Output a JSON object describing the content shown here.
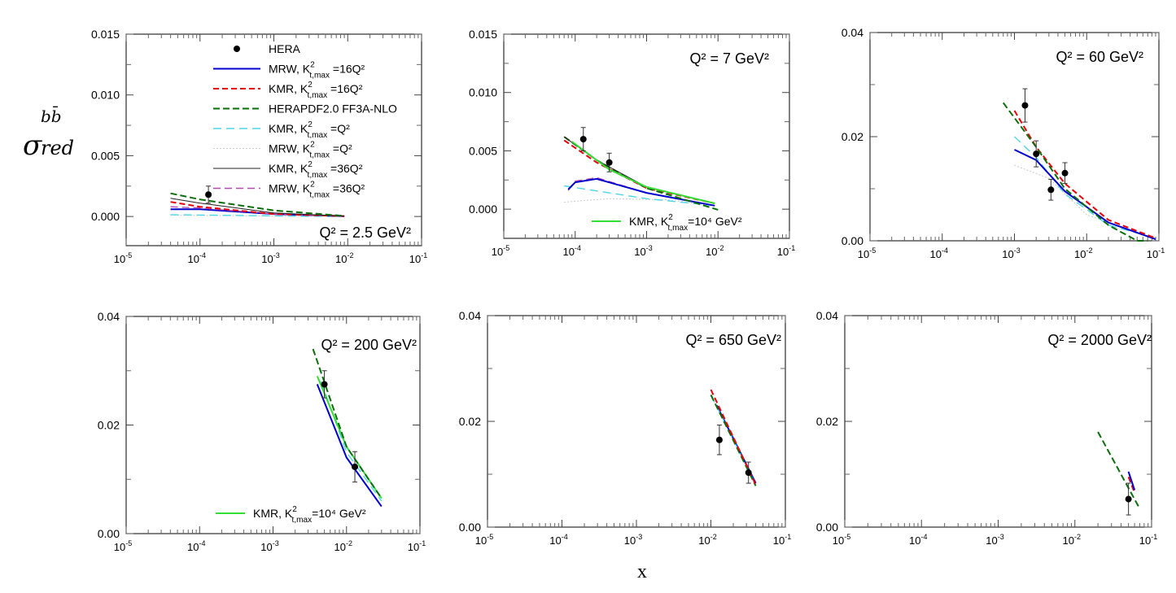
{
  "chart_data": {
    "type": "line",
    "ylabel": {
      "main": "σ",
      "sup": "bb̄",
      "sub": "red"
    },
    "xlabel": "x",
    "xscale": "log",
    "xlim": [
      1e-05,
      0.1
    ],
    "xtick_labels": [
      {
        "base": "10",
        "exp": "-5"
      },
      {
        "base": "10",
        "exp": "-4"
      },
      {
        "base": "10",
        "exp": "-3"
      },
      {
        "base": "10",
        "exp": "-2"
      },
      {
        "base": "10",
        "exp": "-1"
      }
    ],
    "series_styles": {
      "HERA": {
        "label": {
          "pre": "HERA",
          "sup": "",
          "sub": "",
          "post": ""
        },
        "color": "#000000"
      },
      "MRW16": {
        "label": {
          "pre": "MRW, K",
          "sup": "2",
          "sub": "t,max",
          "post": " =16Q²"
        },
        "color": "#0000cc"
      },
      "KMR16": {
        "label": {
          "pre": "KMR, K",
          "sup": "2",
          "sub": "t,max",
          "post": " =16Q²"
        },
        "color": "#e8000b"
      },
      "HERAPDF": {
        "label": {
          "pre": "HERAPDF2.0 FF3A-NLO",
          "sup": "",
          "sub": "",
          "post": ""
        },
        "color": "#0a6e0a"
      },
      "KMRQ2": {
        "label": {
          "pre": "KMR, K",
          "sup": "2",
          "sub": "t,max",
          "post": " =Q²"
        },
        "color": "#4fd6e6"
      },
      "MRWQ2": {
        "label": {
          "pre": "MRW, K",
          "sup": "2",
          "sub": "t,max",
          "post": " =Q²"
        },
        "color": "#c8c8c8"
      },
      "KMR36": {
        "label": {
          "pre": "KMR, K",
          "sup": "2",
          "sub": "t,max",
          "post": " =36Q²"
        },
        "color": "#222222"
      },
      "MRW36": {
        "label": {
          "pre": "MRW, K",
          "sup": "2",
          "sub": "t,max",
          "post": " =36Q²"
        },
        "color": "#b04cb0"
      },
      "KMR1e4": {
        "label": {
          "pre": "KMR, K",
          "sup": "2",
          "sub": "t,max",
          "post": "=10⁴ GeV²"
        },
        "color": "#33dd33"
      }
    },
    "panels": [
      {
        "title": "Q² = 2.5 GeV²",
        "ylim": [
          -0.0024,
          0.015
        ],
        "yticks": [
          {
            "v": 0,
            "label": "0.000"
          },
          {
            "v": 0.005,
            "label": "0.005"
          },
          {
            "v": 0.01,
            "label": "0.010"
          },
          {
            "v": 0.015,
            "label": "0.015"
          }
        ],
        "legend": [
          "HERA",
          "MRW16",
          "KMR16",
          "HERAPDF",
          "KMRQ2",
          "MRWQ2",
          "KMR36",
          "MRW36"
        ],
        "legend_placement": "top-right",
        "data": [
          {
            "x": 0.00013,
            "y": 0.0018,
            "err": 0.0007
          }
        ],
        "series": [
          {
            "key": "MRWQ2",
            "x": [
              4e-05,
              0.009
            ],
            "y": [
              0.0001,
              0
            ]
          },
          {
            "key": "KMRQ2",
            "x": [
              4e-05,
              0.001,
              0.009
            ],
            "y": [
              0.00015,
              5e-05,
              0
            ]
          },
          {
            "key": "MRW16",
            "x": [
              4e-05,
              0.0001,
              0.001,
              0.009
            ],
            "y": [
              0.0006,
              0.0006,
              0.0002,
              3e-05
            ]
          },
          {
            "key": "MRW36",
            "x": [
              4e-05,
              0.0001,
              0.001,
              0.009
            ],
            "y": [
              0.0008,
              0.0007,
              0.0002,
              3e-05
            ]
          },
          {
            "key": "KMR16",
            "x": [
              4e-05,
              0.0001,
              0.001,
              0.009
            ],
            "y": [
              0.0012,
              0.0008,
              0.0002,
              3e-05
            ]
          },
          {
            "key": "KMR36",
            "x": [
              4e-05,
              0.0001,
              0.001,
              0.009
            ],
            "y": [
              0.0015,
              0.0011,
              0.0003,
              3e-05
            ]
          },
          {
            "key": "HERAPDF",
            "x": [
              4e-05,
              0.0001,
              0.001,
              0.009
            ],
            "y": [
              0.0019,
              0.0014,
              0.0005,
              5e-05
            ]
          }
        ]
      },
      {
        "title": "Q² = 7 GeV²",
        "ylim": [
          -0.0025,
          0.015
        ],
        "yticks": [
          {
            "v": 0,
            "label": "0.000"
          },
          {
            "v": 0.005,
            "label": "0.005"
          },
          {
            "v": 0.01,
            "label": "0.010"
          },
          {
            "v": 0.015,
            "label": "0.015"
          }
        ],
        "legend": [
          "KMR1e4"
        ],
        "legend_placement": "bottom-right",
        "data": [
          {
            "x": 0.00013,
            "y": 0.006,
            "err": 0.001
          },
          {
            "x": 0.0003,
            "y": 0.004,
            "err": 0.0008
          }
        ],
        "series": [
          {
            "key": "MRWQ2",
            "x": [
              7e-05,
              0.0003,
              0.002,
              0.009
            ],
            "y": [
              0.0006,
              0.0009,
              0.0008,
              0.0003
            ]
          },
          {
            "key": "KMRQ2",
            "x": [
              7e-05,
              0.001,
              0.009
            ],
            "y": [
              0.002,
              0.0009,
              0.0003
            ]
          },
          {
            "key": "MRW36",
            "x": [
              8e-05,
              0.0001,
              0.0002,
              0.001,
              0.009
            ],
            "y": [
              0.0016,
              0.0024,
              0.0027,
              0.0014,
              0.0003
            ]
          },
          {
            "key": "MRW16",
            "x": [
              8e-05,
              0.0001,
              0.0002,
              0.001,
              0.009
            ],
            "y": [
              0.0017,
              0.0023,
              0.0026,
              0.0014,
              0.0003
            ]
          },
          {
            "key": "KMR16",
            "x": [
              7e-05,
              0.0002,
              0.001,
              0.009
            ],
            "y": [
              0.0059,
              0.004,
              0.0018,
              0.0005
            ]
          },
          {
            "key": "HERAPDF",
            "x": [
              7e-05,
              0.0002,
              0.001,
              0.01
            ],
            "y": [
              0.0062,
              0.0042,
              0.0018,
              -5e-05
            ]
          },
          {
            "key": "KMR36",
            "x": [
              7e-05,
              0.0002,
              0.001,
              0.009
            ],
            "y": [
              0.0062,
              0.0042,
              0.0019,
              0.0005
            ]
          },
          {
            "key": "KMR1e4",
            "x": [
              9e-05,
              0.0003,
              0.001,
              0.009
            ],
            "y": [
              0.0058,
              0.0034,
              0.0019,
              0.0005
            ]
          }
        ]
      },
      {
        "title": "Q² = 60 GeV²",
        "ylim": [
          0,
          0.04
        ],
        "yticks": [
          {
            "v": 0,
            "label": "0.00"
          },
          {
            "v": 0.02,
            "label": "0.02"
          },
          {
            "v": 0.04,
            "label": "0.04"
          }
        ],
        "legend": [],
        "data": [
          {
            "x": 0.0014,
            "y": 0.026,
            "err": 0.0032
          },
          {
            "x": 0.002,
            "y": 0.0167,
            "err": 0.0025
          },
          {
            "x": 0.0032,
            "y": 0.0098,
            "err": 0.002
          },
          {
            "x": 0.005,
            "y": 0.013,
            "err": 0.002
          }
        ],
        "series": [
          {
            "key": "MRWQ2",
            "x": [
              0.001,
              0.003,
              0.01,
              0.09
            ],
            "y": [
              0.0145,
              0.012,
              0.005,
              0.0003
            ]
          },
          {
            "key": "KMRQ2",
            "x": [
              0.001,
              0.002,
              0.005,
              0.02,
              0.09
            ],
            "y": [
              0.02,
              0.016,
              0.009,
              0.003,
              0.0005
            ]
          },
          {
            "key": "MRW16",
            "x": [
              0.001,
              0.002,
              0.005,
              0.02,
              0.09
            ],
            "y": [
              0.0175,
              0.0155,
              0.0095,
              0.0035,
              0.0003
            ]
          },
          {
            "key": "KMR16",
            "x": [
              0.001,
              0.002,
              0.005,
              0.02,
              0.09
            ],
            "y": [
              0.025,
              0.018,
              0.011,
              0.004,
              0.0005
            ]
          },
          {
            "key": "HERAPDF",
            "x": [
              0.0007,
              0.002,
              0.005,
              0.02,
              0.05,
              0.07
            ],
            "y": [
              0.0265,
              0.018,
              0.01,
              0.003,
              0,
              0
            ]
          }
        ]
      },
      {
        "title": "Q² = 200 GeV²",
        "ylim": [
          0,
          0.04
        ],
        "yticks": [
          {
            "v": 0,
            "label": "0.00"
          },
          {
            "v": 0.02,
            "label": "0.02"
          },
          {
            "v": 0.04,
            "label": "0.04"
          }
        ],
        "legend": [
          "KMR1e4"
        ],
        "legend_placement": "bottom-right",
        "data": [
          {
            "x": 0.005,
            "y": 0.0275,
            "err": 0.0025
          },
          {
            "x": 0.013,
            "y": 0.0123,
            "err": 0.0028
          }
        ],
        "series": [
          {
            "key": "KMRQ2",
            "x": [
              0.0045,
              0.01,
              0.03
            ],
            "y": [
              0.028,
              0.015,
              0.006
            ]
          },
          {
            "key": "MRW16",
            "x": [
              0.004,
              0.01,
              0.03
            ],
            "y": [
              0.0275,
              0.014,
              0.005
            ]
          },
          {
            "key": "KMR1e4",
            "x": [
              0.004,
              0.01,
              0.03
            ],
            "y": [
              0.029,
              0.016,
              0.0065
            ]
          },
          {
            "key": "HERAPDF",
            "x": [
              0.0035,
              0.01,
              0.03
            ],
            "y": [
              0.034,
              0.016,
              0.0065
            ]
          }
        ]
      },
      {
        "title": "Q² = 650 GeV²",
        "ylim": [
          0,
          0.04
        ],
        "yticks": [
          {
            "v": 0,
            "label": "0.00"
          },
          {
            "v": 0.02,
            "label": "0.02"
          },
          {
            "v": 0.04,
            "label": "0.04"
          }
        ],
        "legend": [],
        "data": [
          {
            "x": 0.013,
            "y": 0.0165,
            "err": 0.0028
          },
          {
            "x": 0.032,
            "y": 0.0103,
            "err": 0.002
          }
        ],
        "series": [
          {
            "key": "MRW16",
            "x": [
              0.012,
              0.04
            ],
            "y": [
              0.023,
              0.0083
            ]
          },
          {
            "key": "KMRQ2",
            "x": [
              0.01,
              0.04
            ],
            "y": [
              0.025,
              0.008
            ]
          },
          {
            "key": "HERAPDF",
            "x": [
              0.01,
              0.04
            ],
            "y": [
              0.025,
              0.0078
            ]
          },
          {
            "key": "KMR16",
            "x": [
              0.01,
              0.04
            ],
            "y": [
              0.026,
              0.008
            ]
          }
        ]
      },
      {
        "title": "Q² = 2000 GeV²",
        "ylim": [
          0,
          0.04
        ],
        "yticks": [
          {
            "v": 0,
            "label": "0.00"
          },
          {
            "v": 0.02,
            "label": "0.02"
          },
          {
            "v": 0.04,
            "label": "0.04"
          }
        ],
        "legend": [],
        "data": [
          {
            "x": 0.05,
            "y": 0.0053,
            "err": 0.003
          }
        ],
        "series": [
          {
            "key": "KMR16",
            "x": [
              0.05,
              0.06
            ],
            "y": [
              0.0095,
              0.0065
            ]
          },
          {
            "key": "MRW16",
            "x": [
              0.05,
              0.06
            ],
            "y": [
              0.0105,
              0.007
            ]
          },
          {
            "key": "HERAPDF",
            "x": [
              0.02,
              0.07
            ],
            "y": [
              0.018,
              0.0035
            ]
          }
        ]
      }
    ]
  }
}
